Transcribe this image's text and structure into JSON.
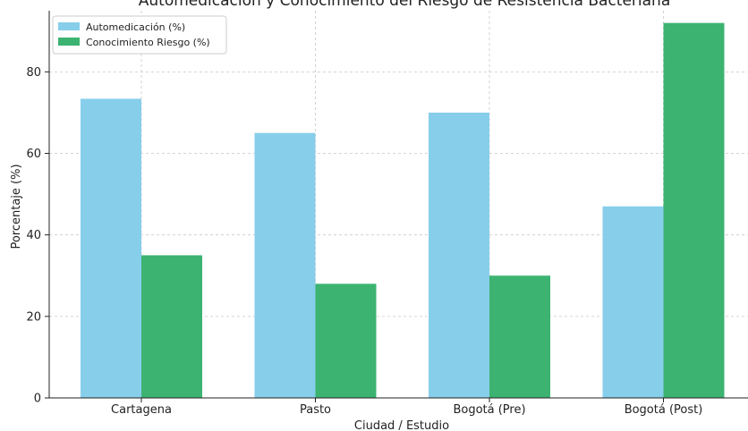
{
  "chart_data": {
    "type": "bar",
    "title": "Automedicación y Conocimiento del Riesgo de Resistencia Bacteriana",
    "xlabel": "Ciudad / Estudio",
    "ylabel": "Porcentaje (%)",
    "categories": [
      "Cartagena",
      "Pasto",
      "Bogotá (Pre)",
      "Bogotá (Post)"
    ],
    "ylim": [
      0,
      95
    ],
    "yticks": [
      0,
      20,
      40,
      60,
      80
    ],
    "grid": true,
    "legend_position": "top-left",
    "series": [
      {
        "name": "Automedicación (%)",
        "color": "#87ceeb",
        "values": [
          73.4,
          65,
          70,
          47
        ]
      },
      {
        "name": "Conocimiento Riesgo (%)",
        "color": "#3cb371",
        "values": [
          35,
          28,
          30,
          92
        ]
      }
    ]
  }
}
